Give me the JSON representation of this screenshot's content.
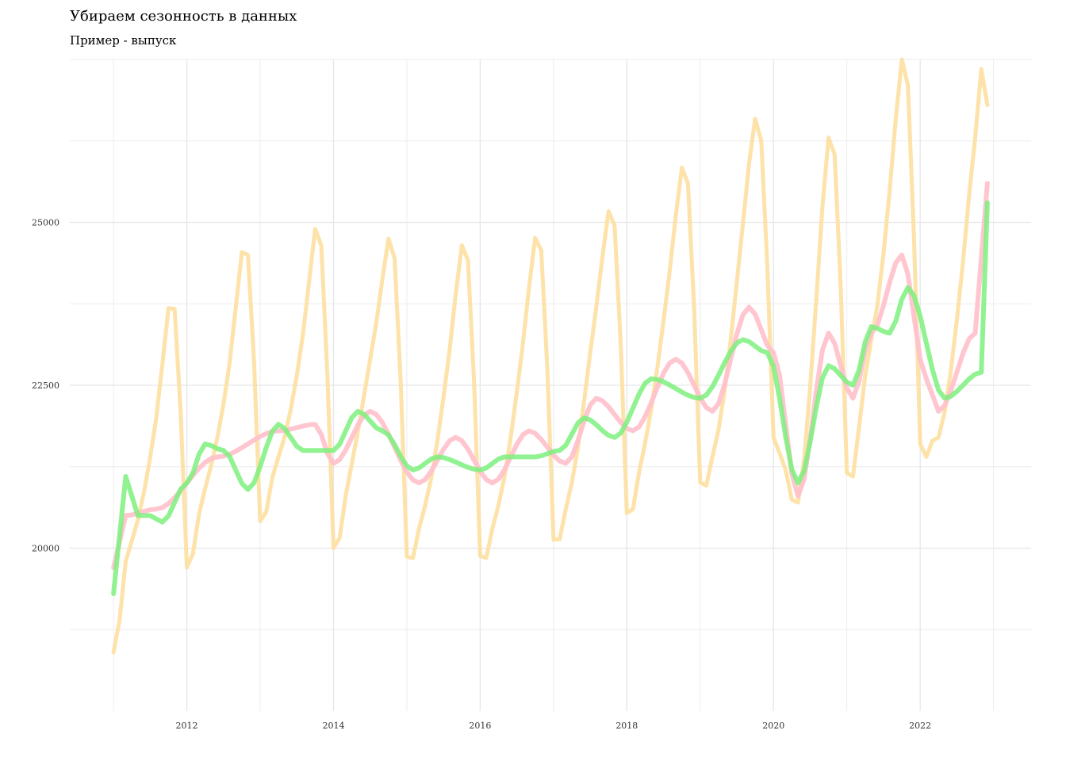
{
  "chart_data": {
    "type": "line",
    "title": "Убираем сезонность в данных",
    "subtitle": "Пример - выпуск",
    "xlabel": "",
    "ylabel": "",
    "x_range": [
      "2011-01",
      "2022-12"
    ],
    "ylim": [
      17500,
      27500
    ],
    "x_ticks": [
      2012,
      2014,
      2016,
      2018,
      2020,
      2022
    ],
    "y_ticks": [
      20000,
      22500,
      25000
    ],
    "grid": true,
    "legend": "none",
    "colors": [
      "#fddfa0",
      "#ffc0cb",
      "#7cf07c"
    ],
    "monthly_pattern": [
      -1300,
      -1200,
      -700,
      -400,
      -100,
      300,
      800,
      1400,
      2200,
      3000,
      2900,
      1200
    ],
    "series": [
      {
        "trend_knots": [
          {
            "date": "2011-01",
            "value": 19700
          },
          {
            "date": "2011-03",
            "value": 20500
          },
          {
            "date": "2011-08",
            "value": 20600
          },
          {
            "date": "2012-06",
            "value": 21400
          },
          {
            "date": "2013-04",
            "value": 21800
          },
          {
            "date": "2013-10",
            "value": 21900
          },
          {
            "date": "2014-01",
            "value": 21300
          },
          {
            "date": "2014-07",
            "value": 22100
          },
          {
            "date": "2015-03",
            "value": 21000
          },
          {
            "date": "2015-09",
            "value": 21700
          },
          {
            "date": "2016-03",
            "value": 21000
          },
          {
            "date": "2016-09",
            "value": 21800
          },
          {
            "date": "2017-03",
            "value": 21300
          },
          {
            "date": "2017-08",
            "value": 22300
          },
          {
            "date": "2018-02",
            "value": 21800
          },
          {
            "date": "2018-09",
            "value": 22900
          },
          {
            "date": "2019-03",
            "value": 22100
          },
          {
            "date": "2019-09",
            "value": 23700
          },
          {
            "date": "2020-01",
            "value": 23000
          },
          {
            "date": "2020-05",
            "value": 20800
          },
          {
            "date": "2020-10",
            "value": 23300
          },
          {
            "date": "2021-02",
            "value": 22300
          },
          {
            "date": "2021-05",
            "value": 23300
          },
          {
            "date": "2021-10",
            "value": 24500
          },
          {
            "date": "2022-02",
            "value": 22600
          },
          {
            "date": "2022-04",
            "value": 22100
          },
          {
            "date": "2022-10",
            "value": 23300
          },
          {
            "date": "2022-12",
            "value": 25600
          }
        ]
      },
      {
        "knots": [
          {
            "date": "2011-01",
            "value": 19300
          },
          {
            "date": "2011-03",
            "value": 21100
          },
          {
            "date": "2011-05",
            "value": 20500
          },
          {
            "date": "2011-07",
            "value": 20500
          },
          {
            "date": "2011-09",
            "value": 20400
          },
          {
            "date": "2012-01",
            "value": 21000
          },
          {
            "date": "2012-04",
            "value": 21600
          },
          {
            "date": "2012-07",
            "value": 21500
          },
          {
            "date": "2012-11",
            "value": 20900
          },
          {
            "date": "2013-04",
            "value": 21900
          },
          {
            "date": "2013-08",
            "value": 21500
          },
          {
            "date": "2014-01",
            "value": 21500
          },
          {
            "date": "2014-05",
            "value": 22100
          },
          {
            "date": "2014-09",
            "value": 21800
          },
          {
            "date": "2015-02",
            "value": 21200
          },
          {
            "date": "2015-06",
            "value": 21400
          },
          {
            "date": "2016-01",
            "value": 21200
          },
          {
            "date": "2016-05",
            "value": 21400
          },
          {
            "date": "2016-10",
            "value": 21400
          },
          {
            "date": "2017-02",
            "value": 21500
          },
          {
            "date": "2017-06",
            "value": 22000
          },
          {
            "date": "2017-11",
            "value": 21700
          },
          {
            "date": "2018-05",
            "value": 22600
          },
          {
            "date": "2019-01",
            "value": 22300
          },
          {
            "date": "2019-08",
            "value": 23200
          },
          {
            "date": "2019-12",
            "value": 23000
          },
          {
            "date": "2020-05",
            "value": 21000
          },
          {
            "date": "2020-10",
            "value": 22800
          },
          {
            "date": "2021-02",
            "value": 22500
          },
          {
            "date": "2021-05",
            "value": 23400
          },
          {
            "date": "2021-08",
            "value": 23300
          },
          {
            "date": "2021-11",
            "value": 24000
          },
          {
            "date": "2022-05",
            "value": 22300
          },
          {
            "date": "2022-11",
            "value": 22700
          },
          {
            "date": "2022-12",
            "value": 25300
          }
        ]
      }
    ]
  }
}
